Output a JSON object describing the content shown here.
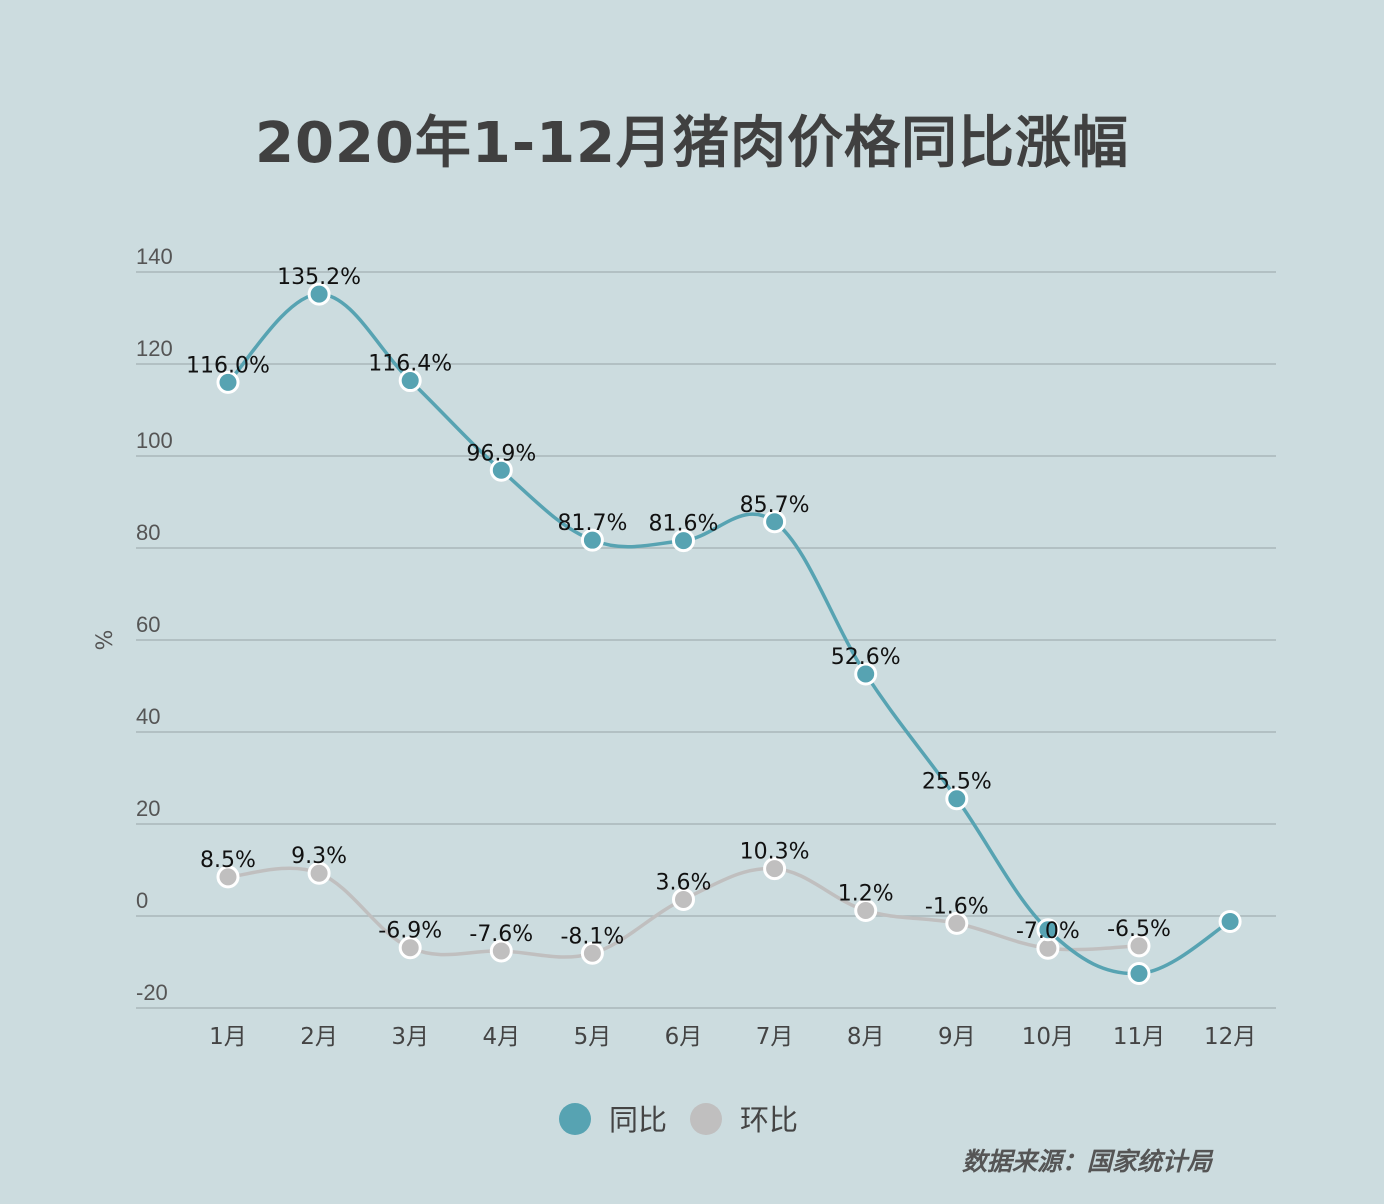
{
  "chart_data": {
    "type": "line",
    "title": "2020年1-12月猪肉价格同比涨幅",
    "ylabel": "%",
    "xlabel": "",
    "categories": [
      "1月",
      "2月",
      "3月",
      "4月",
      "5月",
      "6月",
      "7月",
      "8月",
      "9月",
      "10月",
      "11月",
      "12月"
    ],
    "ylim": [
      -20,
      140
    ],
    "yticks": [
      -20,
      0,
      20,
      40,
      60,
      80,
      100,
      120,
      140
    ],
    "grid": true,
    "legend": "bottom",
    "series": [
      {
        "name": "同比",
        "color": "#57a3b2",
        "values": [
          116.0,
          135.2,
          116.4,
          96.9,
          81.7,
          81.6,
          85.7,
          52.6,
          25.5,
          -3.0,
          -12.5,
          -1.2
        ],
        "labels": [
          "116.0%",
          "135.2%",
          "116.4%",
          "96.9%",
          "81.7%",
          "81.6%",
          "85.7%",
          "52.6%",
          "25.5%",
          null,
          null,
          null
        ]
      },
      {
        "name": "环比",
        "color": "#c0bfbf",
        "values": [
          8.5,
          9.3,
          -6.9,
          -7.6,
          -8.1,
          3.6,
          10.3,
          1.2,
          -1.6,
          -7.0,
          -6.5,
          null
        ],
        "labels": [
          "8.5%",
          "9.3%",
          "-6.9%",
          "-7.6%",
          "-8.1%",
          "3.6%",
          "10.3%",
          "1.2%",
          "-1.6%",
          "-7.0%",
          "-6.5%",
          null
        ]
      }
    ]
  },
  "source": "数据来源：国家统计局"
}
